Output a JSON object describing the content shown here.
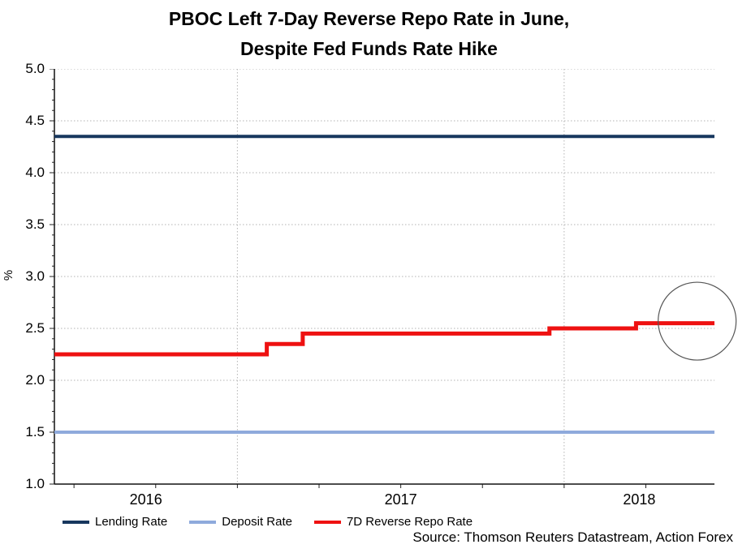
{
  "title": {
    "line1": "PBOC Left 7-Day Reverse Repo Rate in June,",
    "line2": "Despite Fed Funds Rate Hike"
  },
  "ylabel": "%",
  "source": "Source: Thomson Reuters Datastream, Action Forex",
  "legend": {
    "items": [
      {
        "label": "Lending Rate",
        "color": "#17375e"
      },
      {
        "label": "Deposit Rate",
        "color": "#8faadc"
      },
      {
        "label": "7D Reverse Repo Rate",
        "color": "#ee1111"
      }
    ]
  },
  "chart_data": {
    "type": "line",
    "step": true,
    "title": "PBOC Left 7-Day Reverse Repo Rate in June, Despite Fed Funds Rate Hike",
    "xlabel": "",
    "ylabel": "%",
    "ylim": [
      1.0,
      5.0
    ],
    "xlim": [
      2016.44,
      2018.46
    ],
    "grid": "dotted",
    "legend_position": "bottom",
    "y_ticks": [
      {
        "v": 5.0,
        "label": "5.0"
      },
      {
        "v": 4.5,
        "label": "4.5"
      },
      {
        "v": 4.0,
        "label": "4.0"
      },
      {
        "v": 3.5,
        "label": "3.5"
      },
      {
        "v": 3.0,
        "label": "3.0"
      },
      {
        "v": 2.5,
        "label": "2.5"
      },
      {
        "v": 2.0,
        "label": "2.0"
      },
      {
        "v": 1.5,
        "label": "1.5"
      },
      {
        "v": 1.0,
        "label": "1.0"
      }
    ],
    "y_minor_tick_step": 0.1,
    "x_year_labels": [
      {
        "label": "2016",
        "x": 2016.72
      },
      {
        "label": "2017",
        "x": 2017.5
      },
      {
        "label": "2018",
        "x": 2018.23
      }
    ],
    "x_ticks": [
      2016.5,
      2016.75,
      2017.0,
      2017.25,
      2017.5,
      2017.75,
      2018.0,
      2018.25
    ],
    "x_gridlines": [
      2017.0,
      2018.0
    ],
    "series": [
      {
        "name": "Lending Rate",
        "color": "#17375e",
        "points": [
          [
            2016.44,
            4.35
          ],
          [
            2018.46,
            4.35
          ]
        ]
      },
      {
        "name": "Deposit Rate",
        "color": "#8faadc",
        "points": [
          [
            2016.44,
            1.5
          ],
          [
            2018.46,
            1.5
          ]
        ]
      },
      {
        "name": "7D Reverse Repo Rate",
        "color": "#ee1111",
        "points": [
          [
            2016.44,
            2.25
          ],
          [
            2017.09,
            2.25
          ],
          [
            2017.09,
            2.35
          ],
          [
            2017.2,
            2.35
          ],
          [
            2017.2,
            2.45
          ],
          [
            2017.955,
            2.45
          ],
          [
            2017.955,
            2.5
          ],
          [
            2018.22,
            2.5
          ],
          [
            2018.22,
            2.55
          ],
          [
            2018.46,
            2.55
          ]
        ]
      }
    ],
    "annotation": {
      "shape": "circle",
      "x": 2018.407,
      "y": 2.57,
      "radius_px": 48,
      "color": "#555555"
    }
  }
}
